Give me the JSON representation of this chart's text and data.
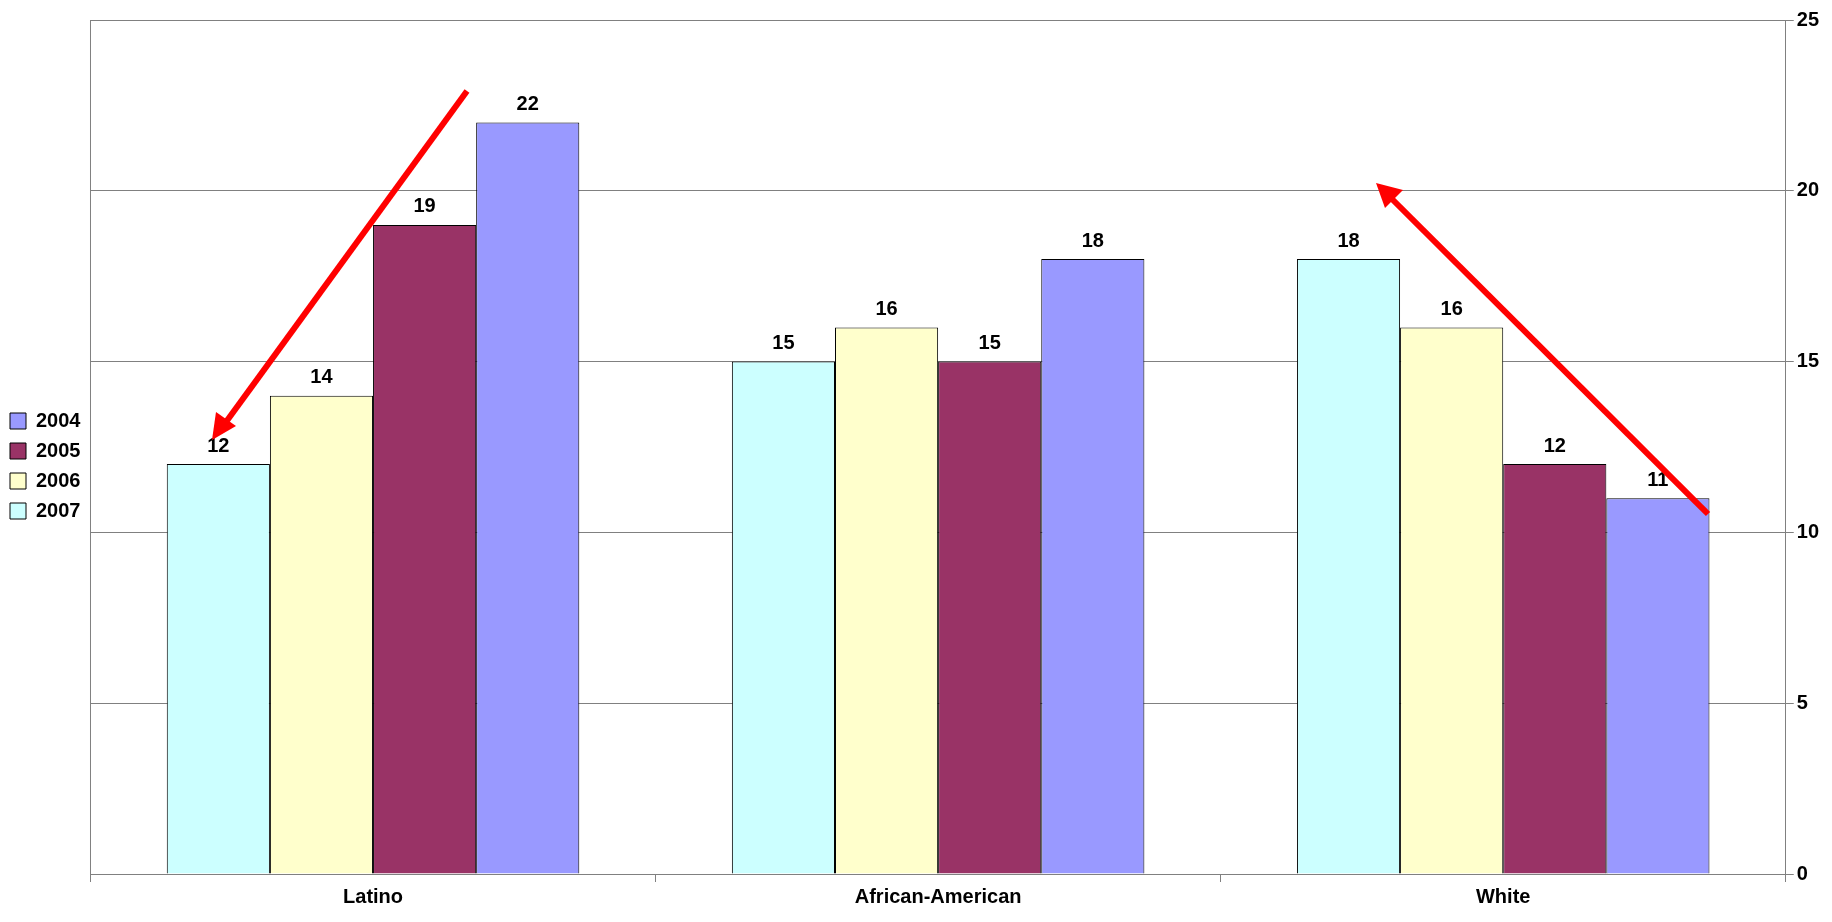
{
  "chart_data": {
    "type": "bar",
    "categories": [
      "Latino",
      "African-American",
      "White"
    ],
    "series": [
      {
        "name": "2007",
        "color": "#ccffff",
        "values": [
          12,
          15,
          18
        ]
      },
      {
        "name": "2006",
        "color": "#ffffcc",
        "values": [
          14,
          16,
          16
        ]
      },
      {
        "name": "2005",
        "color": "#993366",
        "values": [
          19,
          15,
          12
        ]
      },
      {
        "name": "2004",
        "color": "#9999ff",
        "values": [
          22,
          18,
          11
        ]
      }
    ],
    "ylim": [
      0,
      25
    ],
    "yticks": [
      0,
      5,
      10,
      15,
      20,
      25
    ],
    "grid": "y",
    "legend": "left",
    "data_labels": true
  }
}
